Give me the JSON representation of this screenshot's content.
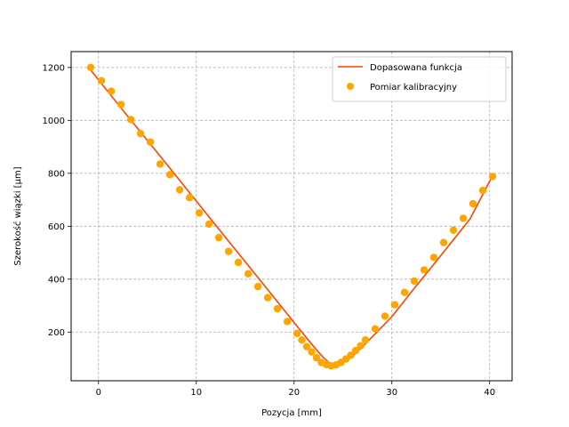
{
  "chart_data": {
    "type": "scatter",
    "xlabel": "Pozycja [mm]",
    "ylabel": "Szerokość wiązki [µm]",
    "xlim": [
      -2.8,
      42.3
    ],
    "ylim": [
      16,
      1260
    ],
    "x_ticks": [
      0,
      10,
      20,
      30,
      40
    ],
    "y_ticks": [
      200,
      400,
      600,
      800,
      1000,
      1200
    ],
    "grid": true,
    "grid_style": "dashed",
    "legend_position": "top-right",
    "colors": {
      "fit": "#ff4500",
      "measurement": "#ffa500",
      "grid": "#b0b0b0"
    },
    "series": [
      {
        "name": "Dopasowana funkcja",
        "kind": "line",
        "x": [
          -0.8,
          1,
          3,
          5,
          7,
          9,
          11,
          13,
          15,
          17,
          19,
          20,
          21,
          21.5,
          22,
          22.5,
          23,
          23.5,
          23.8,
          24.2,
          24.5,
          25,
          25.5,
          26,
          26.5,
          27,
          28,
          29,
          30,
          32,
          34,
          36,
          38,
          40.2
        ],
        "y": [
          1190,
          1107,
          1015,
          924,
          833,
          741,
          649,
          557,
          466,
          374,
          282,
          236,
          191,
          168,
          146,
          124,
          104,
          87,
          80,
          77,
          78,
          84,
          95,
          110,
          127,
          145,
          182,
          220,
          258,
          352,
          443,
          535,
          628,
          784
        ]
      },
      {
        "name": "Pomiar kalibracyjny",
        "kind": "scatter",
        "x": [
          -0.8,
          0.3,
          1.3,
          2.3,
          3.3,
          4.3,
          5.3,
          6.3,
          7.3,
          8.3,
          9.3,
          10.3,
          11.3,
          12.3,
          13.3,
          14.3,
          15.3,
          16.3,
          17.3,
          18.3,
          19.3,
          20.3,
          20.8,
          21.3,
          21.8,
          22.3,
          22.8,
          23.3,
          23.8,
          24.3,
          24.8,
          25.3,
          25.8,
          26.3,
          26.8,
          27.3,
          28.3,
          29.3,
          30.3,
          31.3,
          32.3,
          33.3,
          34.3,
          35.3,
          36.3,
          37.3,
          38.3,
          39.3,
          40.3
        ],
        "y": [
          1200,
          1150,
          1110,
          1060,
          1003,
          950,
          918,
          835,
          795,
          738,
          708,
          650,
          608,
          557,
          505,
          463,
          420,
          372,
          330,
          288,
          240,
          195,
          170,
          145,
          125,
          103,
          85,
          77,
          72,
          76,
          85,
          98,
          112,
          130,
          148,
          170,
          212,
          260,
          303,
          350,
          393,
          435,
          482,
          538,
          585,
          630,
          685,
          735,
          788
        ]
      }
    ]
  }
}
